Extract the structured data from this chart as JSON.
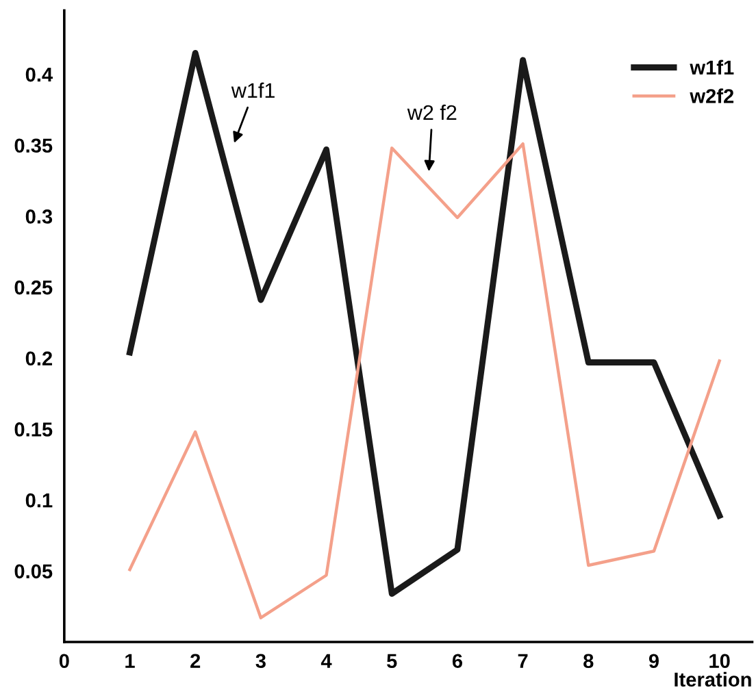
{
  "chart_data": {
    "type": "line",
    "xlabel": "Iteration",
    "x": [
      1,
      2,
      3,
      4,
      5,
      6,
      7,
      8,
      9,
      10
    ],
    "series": [
      {
        "name": "w1f1",
        "color": "#1a1a1a",
        "values": [
          0.204,
          0.415,
          0.241,
          0.347,
          0.034,
          0.065,
          0.41,
          0.197,
          0.197,
          0.089
        ]
      },
      {
        "name": "w2f2",
        "color": "#f4a08a",
        "values": [
          0.051,
          0.148,
          0.017,
          0.047,
          0.348,
          0.299,
          0.351,
          0.054,
          0.064,
          0.198
        ]
      }
    ],
    "xlim": [
      0,
      10.5
    ],
    "ylim": [
      0,
      0.445
    ],
    "xticks": [
      0,
      1,
      2,
      3,
      4,
      5,
      6,
      7,
      8,
      9,
      10
    ],
    "yticks": [
      0.05,
      0.1,
      0.15,
      0.2,
      0.25,
      0.3,
      0.35,
      0.4
    ],
    "annotations": [
      "w1f1",
      "w2 f2"
    ],
    "legend": "top right",
    "grid": false,
    "marker": "none",
    "line_style": "solid"
  }
}
